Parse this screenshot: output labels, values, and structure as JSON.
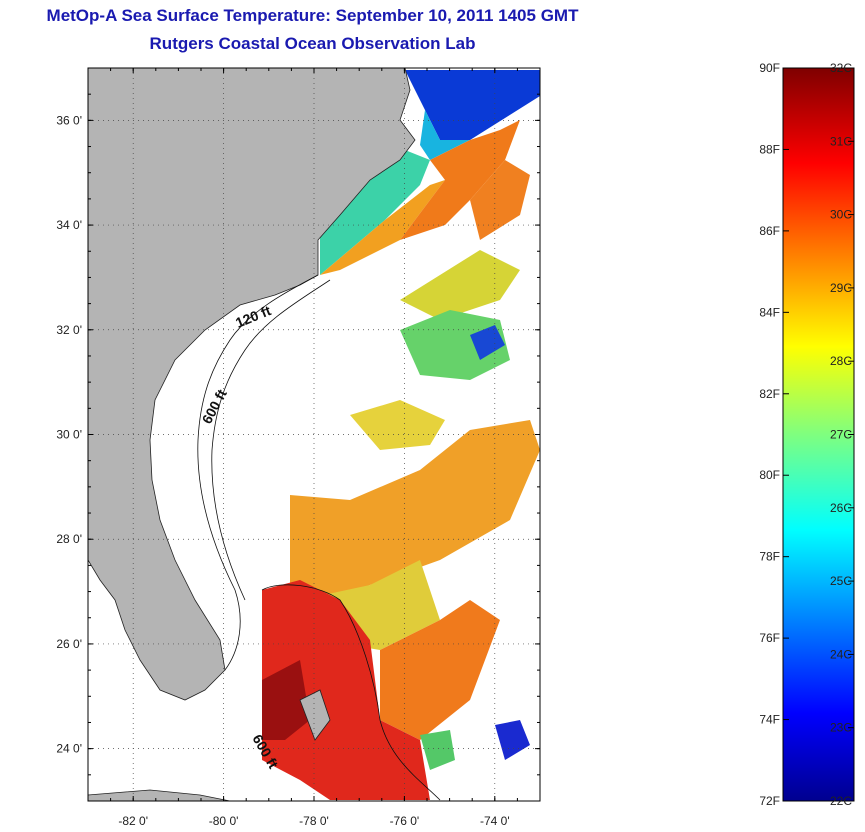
{
  "header": {
    "title": "MetOp-A Sea Surface Temperature:  September 10, 2011 1405 GMT",
    "subtitle": "Rutgers Coastal Ocean Observation Lab"
  },
  "map": {
    "lon_range": [
      -83,
      -73
    ],
    "lat_range": [
      23,
      37
    ],
    "lat_ticks": [
      {
        "value": 36,
        "label": "36 0'"
      },
      {
        "value": 34,
        "label": "34 0'"
      },
      {
        "value": 32,
        "label": "32 0'"
      },
      {
        "value": 30,
        "label": "30 0'"
      },
      {
        "value": 28,
        "label": "28 0'"
      },
      {
        "value": 26,
        "label": "26 0'"
      },
      {
        "value": 24,
        "label": "24 0'"
      }
    ],
    "lon_ticks": [
      {
        "value": -82,
        "label": "-82 0'"
      },
      {
        "value": -80,
        "label": "-80 0'"
      },
      {
        "value": -78,
        "label": "-78 0'"
      },
      {
        "value": -76,
        "label": "-76 0'"
      },
      {
        "value": -74,
        "label": "-74 0'"
      }
    ],
    "gridlines": true,
    "land_color": "#b4b4b4",
    "contour_labels": [
      "120 ft",
      "600 ft",
      "600 ft"
    ]
  },
  "colorbar": {
    "colormap": "jet",
    "fahrenheit_labels": [
      "90F",
      "88F",
      "86F",
      "84F",
      "82F",
      "80F",
      "78F",
      "76F",
      "74F",
      "72F"
    ],
    "celsius_labels": [
      "32C",
      "31C",
      "30C",
      "29C",
      "28C",
      "27C",
      "26C",
      "25C",
      "24C",
      "23C",
      "22C"
    ],
    "celsius_range": [
      22,
      32
    ],
    "fahrenheit_range": [
      72,
      90
    ]
  }
}
